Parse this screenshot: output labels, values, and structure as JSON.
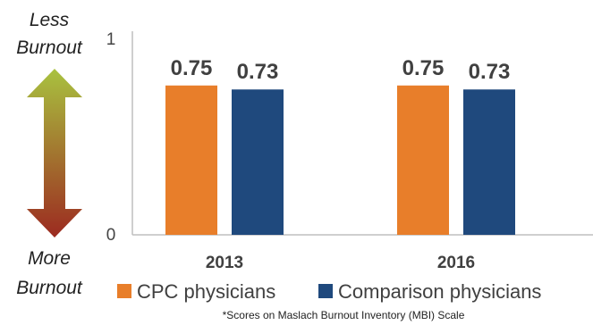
{
  "chart_data": {
    "type": "bar",
    "categories": [
      "2013",
      "2016"
    ],
    "series": [
      {
        "name": "CPC physicians",
        "values": [
          0.75,
          0.75
        ],
        "color": "#E87E2A"
      },
      {
        "name": "Comparison physicians",
        "values": [
          0.73,
          0.73
        ],
        "color": "#1F497D"
      }
    ],
    "data_labels": [
      [
        "0.75",
        "0.73"
      ],
      [
        "0.75",
        "0.73"
      ]
    ],
    "ylim": [
      0,
      1
    ],
    "y_ticks": [
      "0",
      "1"
    ],
    "grid": false,
    "legend": "bottom",
    "axis_annotation": {
      "top": [
        "Less",
        "Burnout"
      ],
      "bottom": [
        "More",
        "Burnout"
      ],
      "arrow_colors": [
        "#A9C23F",
        "#9C2A20"
      ]
    },
    "footnote": "*Scores on Maslach Burnout Inventory (MBI) Scale"
  }
}
